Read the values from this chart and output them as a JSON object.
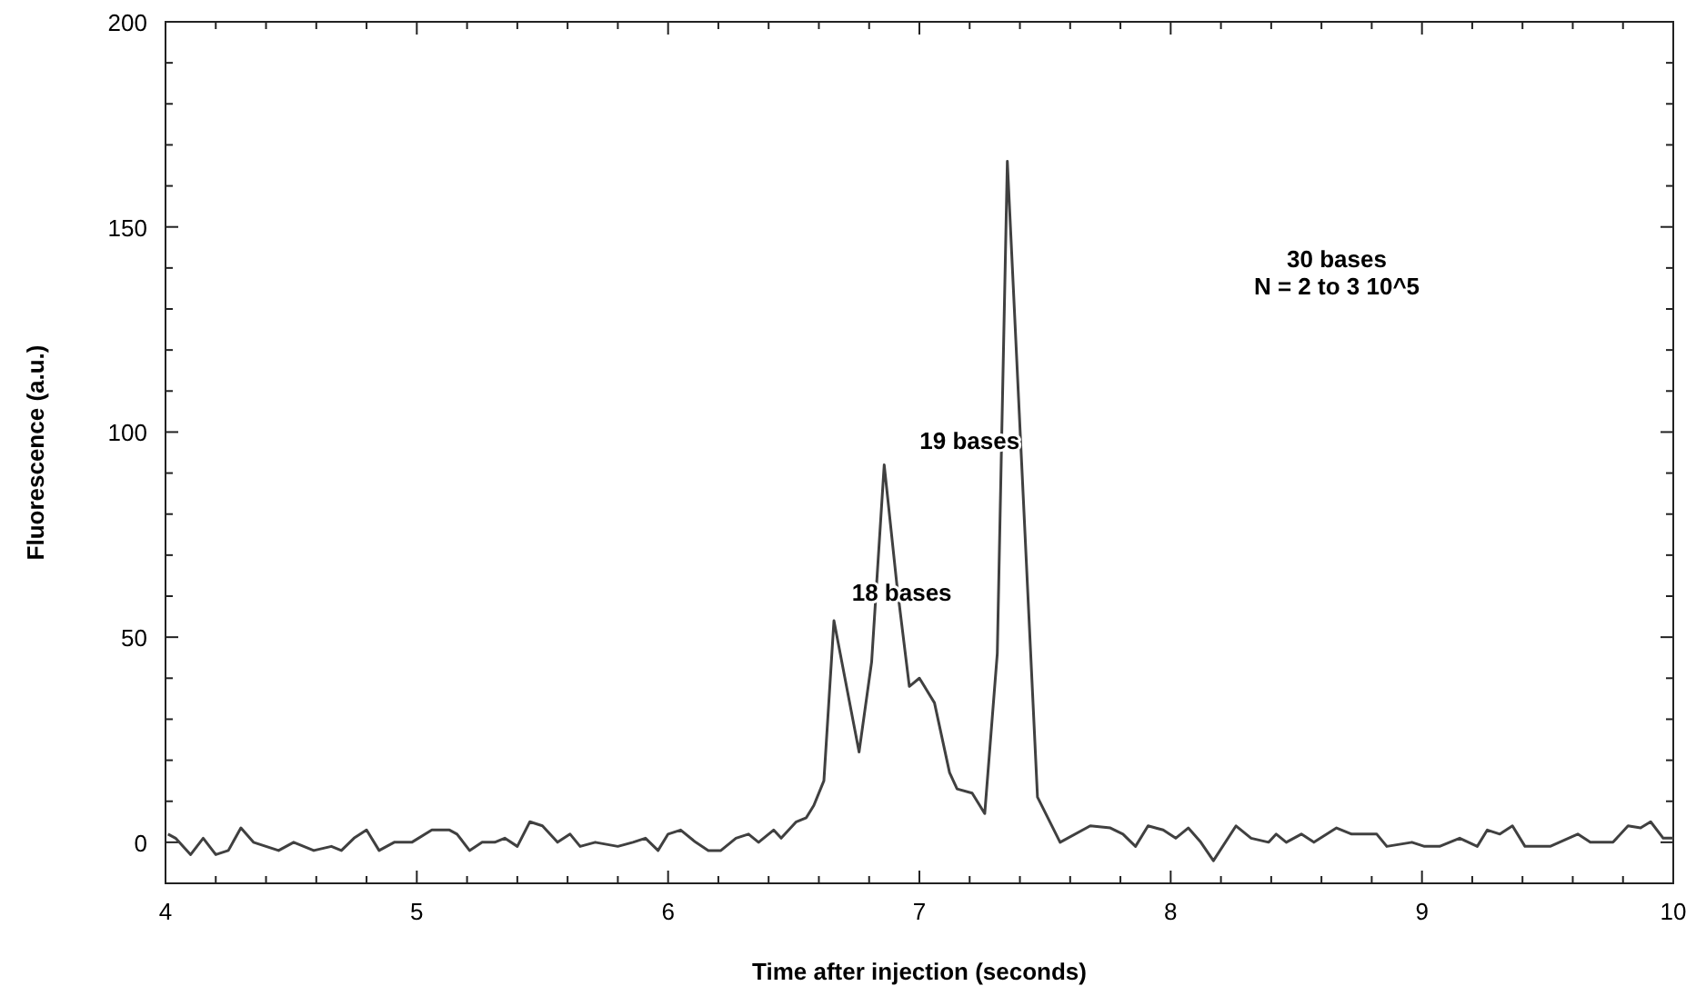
{
  "chart_data": {
    "type": "line",
    "xlabel": "Time after injection (seconds)",
    "ylabel": "Fluorescence (a.u.)",
    "x": [
      4.01,
      4.04,
      4.1,
      4.15,
      4.2,
      4.25,
      4.3,
      4.35,
      4.45,
      4.51,
      4.59,
      4.66,
      4.7,
      4.75,
      4.8,
      4.85,
      4.91,
      4.98,
      5.06,
      5.13,
      5.16,
      5.21,
      5.26,
      5.31,
      5.35,
      5.4,
      5.45,
      5.5,
      5.56,
      5.61,
      5.65,
      5.71,
      5.8,
      5.86,
      5.91,
      5.96,
      6.0,
      6.05,
      6.11,
      6.16,
      6.21,
      6.27,
      6.32,
      6.36,
      6.42,
      6.45,
      6.51,
      6.55,
      6.58,
      6.62,
      6.66,
      6.76,
      6.81,
      6.86,
      6.91,
      6.96,
      7.0,
      7.06,
      7.12,
      7.15,
      7.21,
      7.26,
      7.31,
      7.35,
      7.47,
      7.56,
      7.68,
      7.76,
      7.81,
      7.86,
      7.91,
      7.97,
      8.02,
      8.07,
      8.12,
      8.17,
      8.26,
      8.32,
      8.39,
      8.42,
      8.46,
      8.52,
      8.57,
      8.66,
      8.72,
      8.82,
      8.86,
      8.96,
      9.01,
      9.07,
      9.15,
      9.22,
      9.26,
      9.31,
      9.36,
      9.41,
      9.51,
      9.62,
      9.67,
      9.76,
      9.82,
      9.87,
      9.91,
      9.96,
      10.0
    ],
    "series": [
      {
        "color": "#404040",
        "values": [
          2,
          1,
          -3,
          1,
          -3,
          -2,
          3.5,
          0,
          -2,
          0,
          -2,
          -1,
          -2,
          1,
          3,
          -2,
          0,
          0,
          3,
          3,
          2,
          -2,
          0,
          0,
          1,
          -1,
          5,
          4,
          0,
          2,
          -1,
          0,
          -1,
          0,
          1,
          -2,
          2,
          3,
          0,
          -2,
          -2,
          1,
          2,
          0,
          3,
          1,
          5,
          6,
          9,
          15,
          54,
          22,
          44,
          92,
          63,
          38,
          40,
          34,
          17,
          13,
          12,
          7,
          46,
          166,
          11,
          0,
          4,
          3.5,
          2,
          -1,
          4,
          3,
          1,
          3.5,
          0,
          -4.5,
          4,
          1,
          0,
          2,
          0,
          2,
          0,
          3.5,
          2,
          2,
          -1,
          0,
          -1,
          -1,
          1,
          -1,
          3,
          2,
          4,
          -1,
          -1,
          2,
          0,
          0,
          4,
          3.5,
          5,
          1,
          1
        ]
      }
    ],
    "xlim": [
      4,
      10
    ],
    "ylim": [
      -10,
      200
    ],
    "xticks": [
      4,
      {
        "value": 4.2,
        "label": null
      },
      {
        "value": 4.4,
        "label": null
      },
      {
        "value": 4.6,
        "label": null
      },
      {
        "value": 4.8,
        "label": null
      },
      5,
      {
        "value": 5.2,
        "label": null
      },
      {
        "value": 5.4,
        "label": null
      },
      {
        "value": 5.6,
        "label": null
      },
      {
        "value": 5.8,
        "label": null
      },
      6,
      {
        "value": 6.2,
        "label": null
      },
      {
        "value": 6.4,
        "label": null
      },
      {
        "value": 6.6,
        "label": null
      },
      {
        "value": 6.8,
        "label": null
      },
      7,
      {
        "value": 7.2,
        "label": null
      },
      {
        "value": 7.4,
        "label": null
      },
      {
        "value": 7.6,
        "label": null
      },
      {
        "value": 7.8,
        "label": null
      },
      8,
      {
        "value": 8.2,
        "label": null
      },
      {
        "value": 8.4,
        "label": null
      },
      {
        "value": 8.6,
        "label": null
      },
      {
        "value": 8.8,
        "label": null
      },
      9,
      {
        "value": 9.2,
        "label": null
      },
      {
        "value": 9.4,
        "label": null
      },
      {
        "value": 9.6,
        "label": null
      },
      {
        "value": 9.8,
        "label": null
      },
      10
    ],
    "yticks": [
      {
        "value": -10,
        "label": null
      },
      0,
      {
        "value": 10,
        "label": null
      },
      {
        "value": 20,
        "label": null
      },
      {
        "value": 30,
        "label": null
      },
      {
        "value": 40,
        "label": null
      },
      50,
      {
        "value": 60,
        "label": null
      },
      {
        "value": 70,
        "label": null
      },
      {
        "value": 80,
        "label": null
      },
      {
        "value": 90,
        "label": null
      },
      100,
      {
        "value": 110,
        "label": null
      },
      {
        "value": 120,
        "label": null
      },
      {
        "value": 130,
        "label": null
      },
      {
        "value": 140,
        "label": null
      },
      150,
      {
        "value": 160,
        "label": null
      },
      {
        "value": 170,
        "label": null
      },
      {
        "value": 180,
        "label": null
      },
      {
        "value": 190,
        "label": null
      },
      200
    ],
    "marker": "none",
    "line_style": "solid",
    "annotations": [
      "18 bases",
      "19 bases",
      "30 bases\nN = 2 to 3 10^5"
    ]
  }
}
